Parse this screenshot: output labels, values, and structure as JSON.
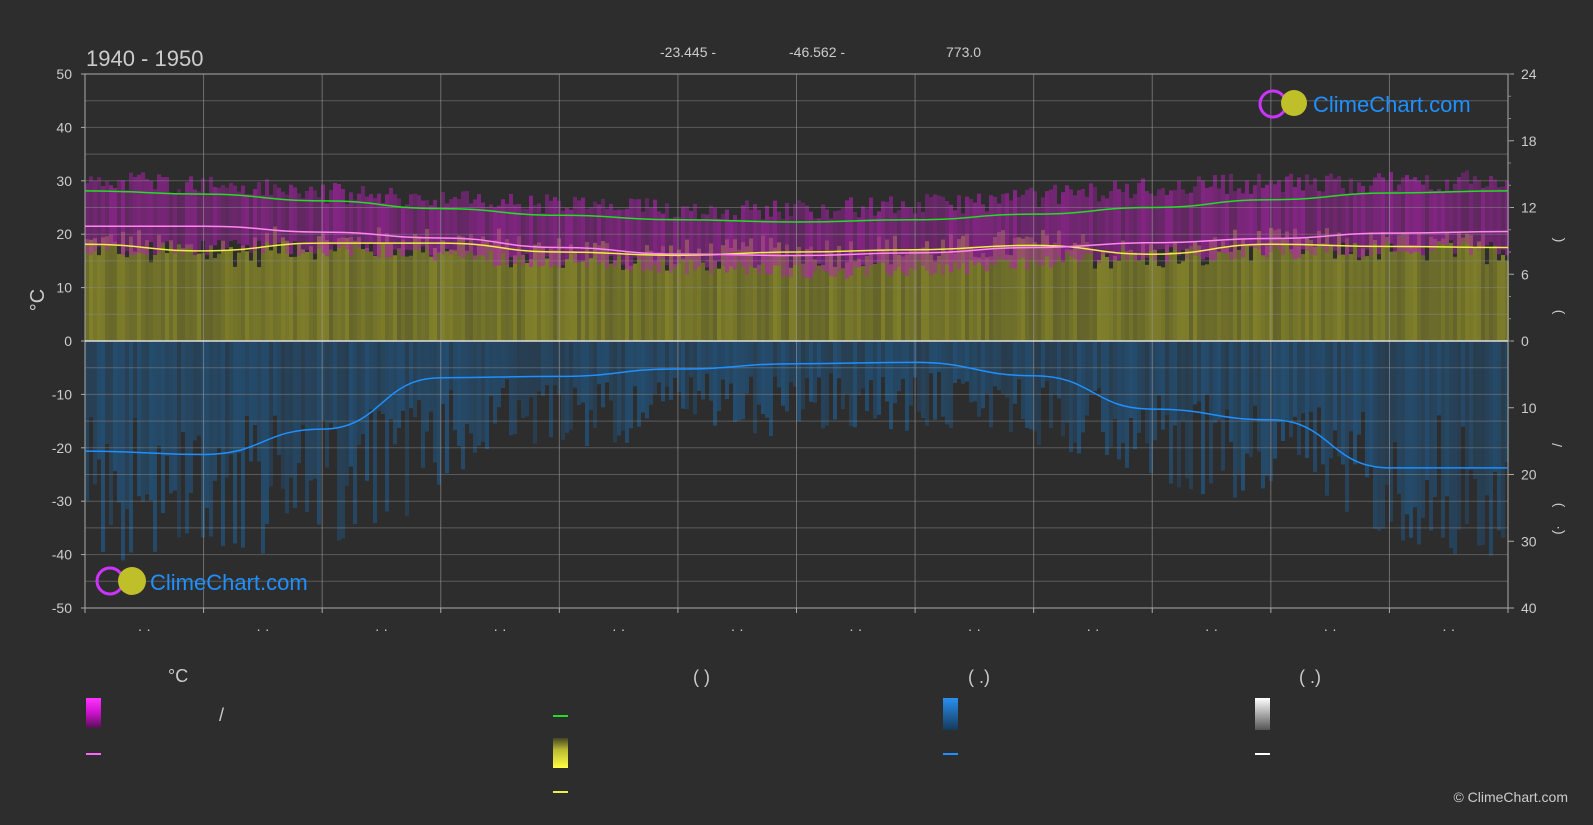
{
  "header": {
    "period": "1940 - 1950",
    "latitude": "-23.445 -",
    "longitude": "-46.562 -",
    "elevation": "773.0"
  },
  "logo": {
    "text": "ClimeChart.com"
  },
  "copyright": "© ClimeChart.com",
  "legend": {
    "temp_header": "°C",
    "sun_header": "(          )",
    "rain_header": "(   .)",
    "snow_header": "(   .)",
    "slash": "/"
  },
  "colors": {
    "background": "#2d2d2d",
    "grid": "#777777",
    "daylight": "#22dd22",
    "sunshine": "#eeee44",
    "temp_band": "#dd22dd",
    "temp_mean": "#ff88ee",
    "precip": "#2f7fc0",
    "precip_line": "#1e90ff",
    "brand": "#1e90ff"
  },
  "chart_data": {
    "type": "area",
    "title": "1940 - 1950",
    "ylabel": "°C",
    "ylim": [
      -50,
      50
    ],
    "y_ticks": [
      "50",
      "40",
      "30",
      "20",
      "10",
      "0",
      "-10",
      "-20",
      "-30",
      "-40",
      "-50"
    ],
    "y2_top_ticks": [
      "24",
      "18",
      "12",
      "6",
      "0"
    ],
    "y2_top_range": [
      0,
      24
    ],
    "y2_bottom_ticks": [
      "10",
      "20",
      "30",
      "40"
    ],
    "y2_bottom_range": [
      0,
      40
    ],
    "y2_labels": [
      "(",
      ")",
      "(",
      ")",
      "/",
      ")",
      "(·"
    ],
    "x_tick_labels": [
      "· ·",
      "· ·",
      "· ·",
      "· ·",
      "· ·",
      "· ·",
      "· ·",
      "· ·",
      "· ·",
      "· ·",
      "· ·",
      "· ·"
    ],
    "months": 12,
    "series": [
      {
        "key": "daylight",
        "axis": "sun",
        "x": [
          0,
          1,
          2,
          3,
          4,
          5,
          6,
          7,
          8,
          9,
          10,
          11,
          12
        ],
        "values": [
          13.5,
          13.2,
          12.6,
          11.9,
          11.3,
          10.9,
          10.7,
          10.9,
          11.4,
          12.0,
          12.7,
          13.3,
          13.5
        ]
      },
      {
        "key": "sunshine",
        "axis": "sun",
        "x": [
          0,
          1,
          2,
          3,
          4,
          5,
          6,
          7,
          8,
          9,
          10,
          11,
          12
        ],
        "values": [
          8.7,
          8.1,
          8.8,
          8.8,
          8.0,
          7.7,
          8.0,
          8.2,
          8.6,
          7.8,
          8.7,
          8.5,
          8.4
        ]
      },
      {
        "key": "mean_temp",
        "axis": "temp",
        "x": [
          0,
          1,
          2,
          3,
          4,
          5,
          6,
          7,
          8,
          9,
          10,
          11,
          12
        ],
        "values": [
          21.5,
          21.5,
          20.4,
          19.3,
          17.5,
          16.3,
          16.0,
          16.5,
          17.5,
          18.4,
          19.2,
          20.2,
          20.5
        ]
      },
      {
        "key": "precip",
        "axis": "rain",
        "x": [
          0,
          1,
          2,
          3,
          4,
          5,
          6,
          7,
          8,
          9,
          10,
          11,
          12
        ],
        "values": [
          16.5,
          17.0,
          13.2,
          5.5,
          5.3,
          4.2,
          3.4,
          3.2,
          5.2,
          10.2,
          11.8,
          19.0,
          19.0
        ]
      }
    ],
    "band_temp_max": [
      30.0,
      28.5,
      27.0,
      26.0,
      25.0,
      24.5,
      25.0,
      26.0,
      28.0,
      29.5,
      29.5,
      30.0
    ],
    "band_temp_min": [
      17.5,
      17.5,
      17.0,
      15.5,
      14.5,
      13.5,
      13.0,
      14.0,
      15.5,
      16.5,
      17.0,
      17.5
    ],
    "band_precip_max": [
      28,
      27,
      24,
      14,
      13,
      12,
      12,
      11,
      15,
      20,
      22,
      27
    ]
  }
}
